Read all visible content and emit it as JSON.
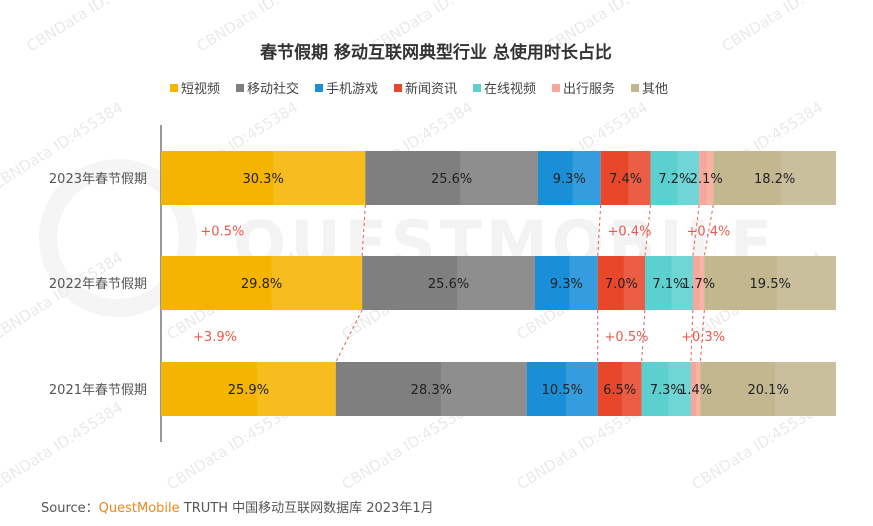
{
  "chart_data": {
    "type": "bar",
    "stacked": "horizontal-100%",
    "title": "春节假期 移动互联网典型行业 总使用时长占比",
    "legend_position": "top",
    "categories": [
      "2023年春节假期",
      "2022年春节假期",
      "2021年春节假期"
    ],
    "series": [
      {
        "name": "短视频",
        "color": "#f5b400",
        "values": [
          30.3,
          29.8,
          25.9
        ],
        "labels": [
          "30.3%",
          "29.8%",
          "25.9%"
        ]
      },
      {
        "name": "移动社交",
        "color": "#7f7f7f",
        "values": [
          25.6,
          25.6,
          28.3
        ],
        "labels": [
          "25.6%",
          "25.6%",
          "28.3%"
        ]
      },
      {
        "name": "手机游戏",
        "color": "#1a8fd8",
        "values": [
          9.3,
          9.3,
          10.5
        ],
        "labels": [
          "9.3%",
          "9.3%",
          "10.5%"
        ]
      },
      {
        "name": "新闻资讯",
        "color": "#e8472a",
        "values": [
          7.4,
          7.0,
          6.5
        ],
        "labels": [
          "7.4%",
          "7.0%",
          "6.5%"
        ]
      },
      {
        "name": "在线视频",
        "color": "#5ccfcf",
        "values": [
          7.2,
          7.1,
          7.3
        ],
        "labels": [
          "7.2%",
          "7.1%",
          "7.3%"
        ]
      },
      {
        "name": "出行服务",
        "color": "#f5a89a",
        "values": [
          2.1,
          1.7,
          1.4
        ],
        "labels": [
          "2.1%",
          "1.7%",
          "1.4%"
        ]
      },
      {
        "name": "其他",
        "color": "#c2b78f",
        "values": [
          18.2,
          19.5,
          20.1
        ],
        "labels": [
          "18.2%",
          "19.5%",
          "20.1%"
        ]
      }
    ],
    "deltas": [
      {
        "between": [
          "2023年春节假期",
          "2022年春节假期"
        ],
        "items": [
          {
            "series": "短视频",
            "text": "+0.5%"
          },
          {
            "series": "新闻资讯",
            "text": "+0.4%"
          },
          {
            "series": "出行服务",
            "text": "+0.4%"
          }
        ]
      },
      {
        "between": [
          "2022年春节假期",
          "2021年春节假期"
        ],
        "items": [
          {
            "series": "短视频",
            "text": "+3.9%"
          },
          {
            "series": "新闻资讯",
            "text": "+0.5%"
          },
          {
            "series": "出行服务",
            "text": "+0.3%"
          }
        ]
      }
    ]
  },
  "watermark": {
    "text": "CBNData ID:455384",
    "logo_text": "QUESTMOBILE"
  },
  "source": {
    "prefix": "Source：",
    "brand": "QuestMobile",
    "rest": " TRUTH 中国移动互联网数据库 2023年1月"
  }
}
